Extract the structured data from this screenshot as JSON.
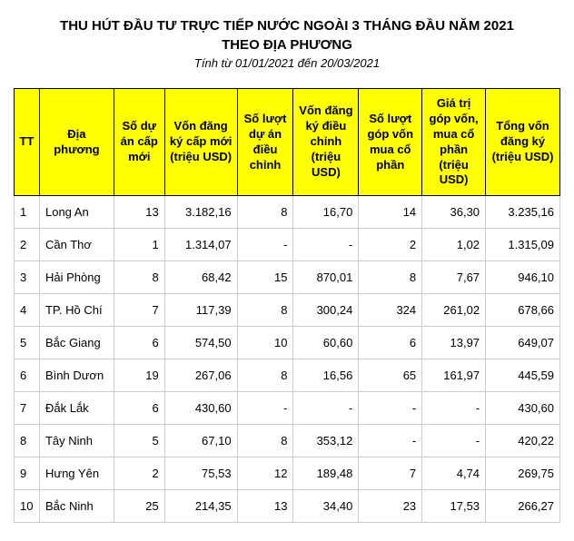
{
  "title": "THU HÚT ĐẦU TƯ TRỰC TIẾP NƯỚC NGOÀI 3 THÁNG ĐẦU NĂM 2021",
  "subtitle": "THEO ĐỊA PHƯƠNG",
  "daterange": "Tính từ 01/01/2021 đến 20/03/2021",
  "table": {
    "columns": [
      "TT",
      "Địa phương",
      "Số dự án cấp mới",
      "Vốn đăng ký cấp mới (triệu USD)",
      "Số lượt dự án điều chỉnh",
      "Vốn đăng ký điều chỉnh (triệu USD)",
      "Số lượt góp vốn mua cổ phần",
      "Giá trị góp vốn, mua cổ phần (triệu USD)",
      "Tổng vốn đăng ký (triệu USD)"
    ],
    "rows": [
      [
        "1",
        "Long An",
        "13",
        "3.182,16",
        "8",
        "16,70",
        "14",
        "36,30",
        "3.235,16"
      ],
      [
        "2",
        "Cần Thơ",
        "1",
        "1.314,07",
        "-",
        "-",
        "2",
        "1,02",
        "1.315,09"
      ],
      [
        "3",
        "Hải Phòng",
        "8",
        "68,42",
        "15",
        "870,01",
        "8",
        "7,67",
        "946,10"
      ],
      [
        "4",
        "TP. Hồ Chí",
        "7",
        "117,39",
        "8",
        "300,24",
        "324",
        "261,02",
        "678,66"
      ],
      [
        "5",
        "Bắc Giang",
        "6",
        "574,50",
        "10",
        "60,60",
        "6",
        "13,97",
        "649,07"
      ],
      [
        "6",
        "Bình Dươn",
        "19",
        "267,06",
        "8",
        "16,56",
        "65",
        "161,97",
        "445,59"
      ],
      [
        "7",
        "Đắk Lắk",
        "6",
        "430,60",
        "-",
        "-",
        "-",
        "-",
        "430,60"
      ],
      [
        "8",
        "Tây Ninh",
        "5",
        "67,10",
        "8",
        "353,12",
        "-",
        "-",
        "420,22"
      ],
      [
        "9",
        "Hưng Yên",
        "2",
        "75,53",
        "12",
        "189,48",
        "7",
        "4,74",
        "269,75"
      ],
      [
        "10",
        "Bắc Ninh",
        "25",
        "214,35",
        "13",
        "34,40",
        "23",
        "17,53",
        "266,27"
      ]
    ],
    "header_bg": "#ffff00",
    "header_border": "#000000",
    "cell_border": "#cccccc",
    "text_color": "#000000",
    "font_size": 13
  }
}
